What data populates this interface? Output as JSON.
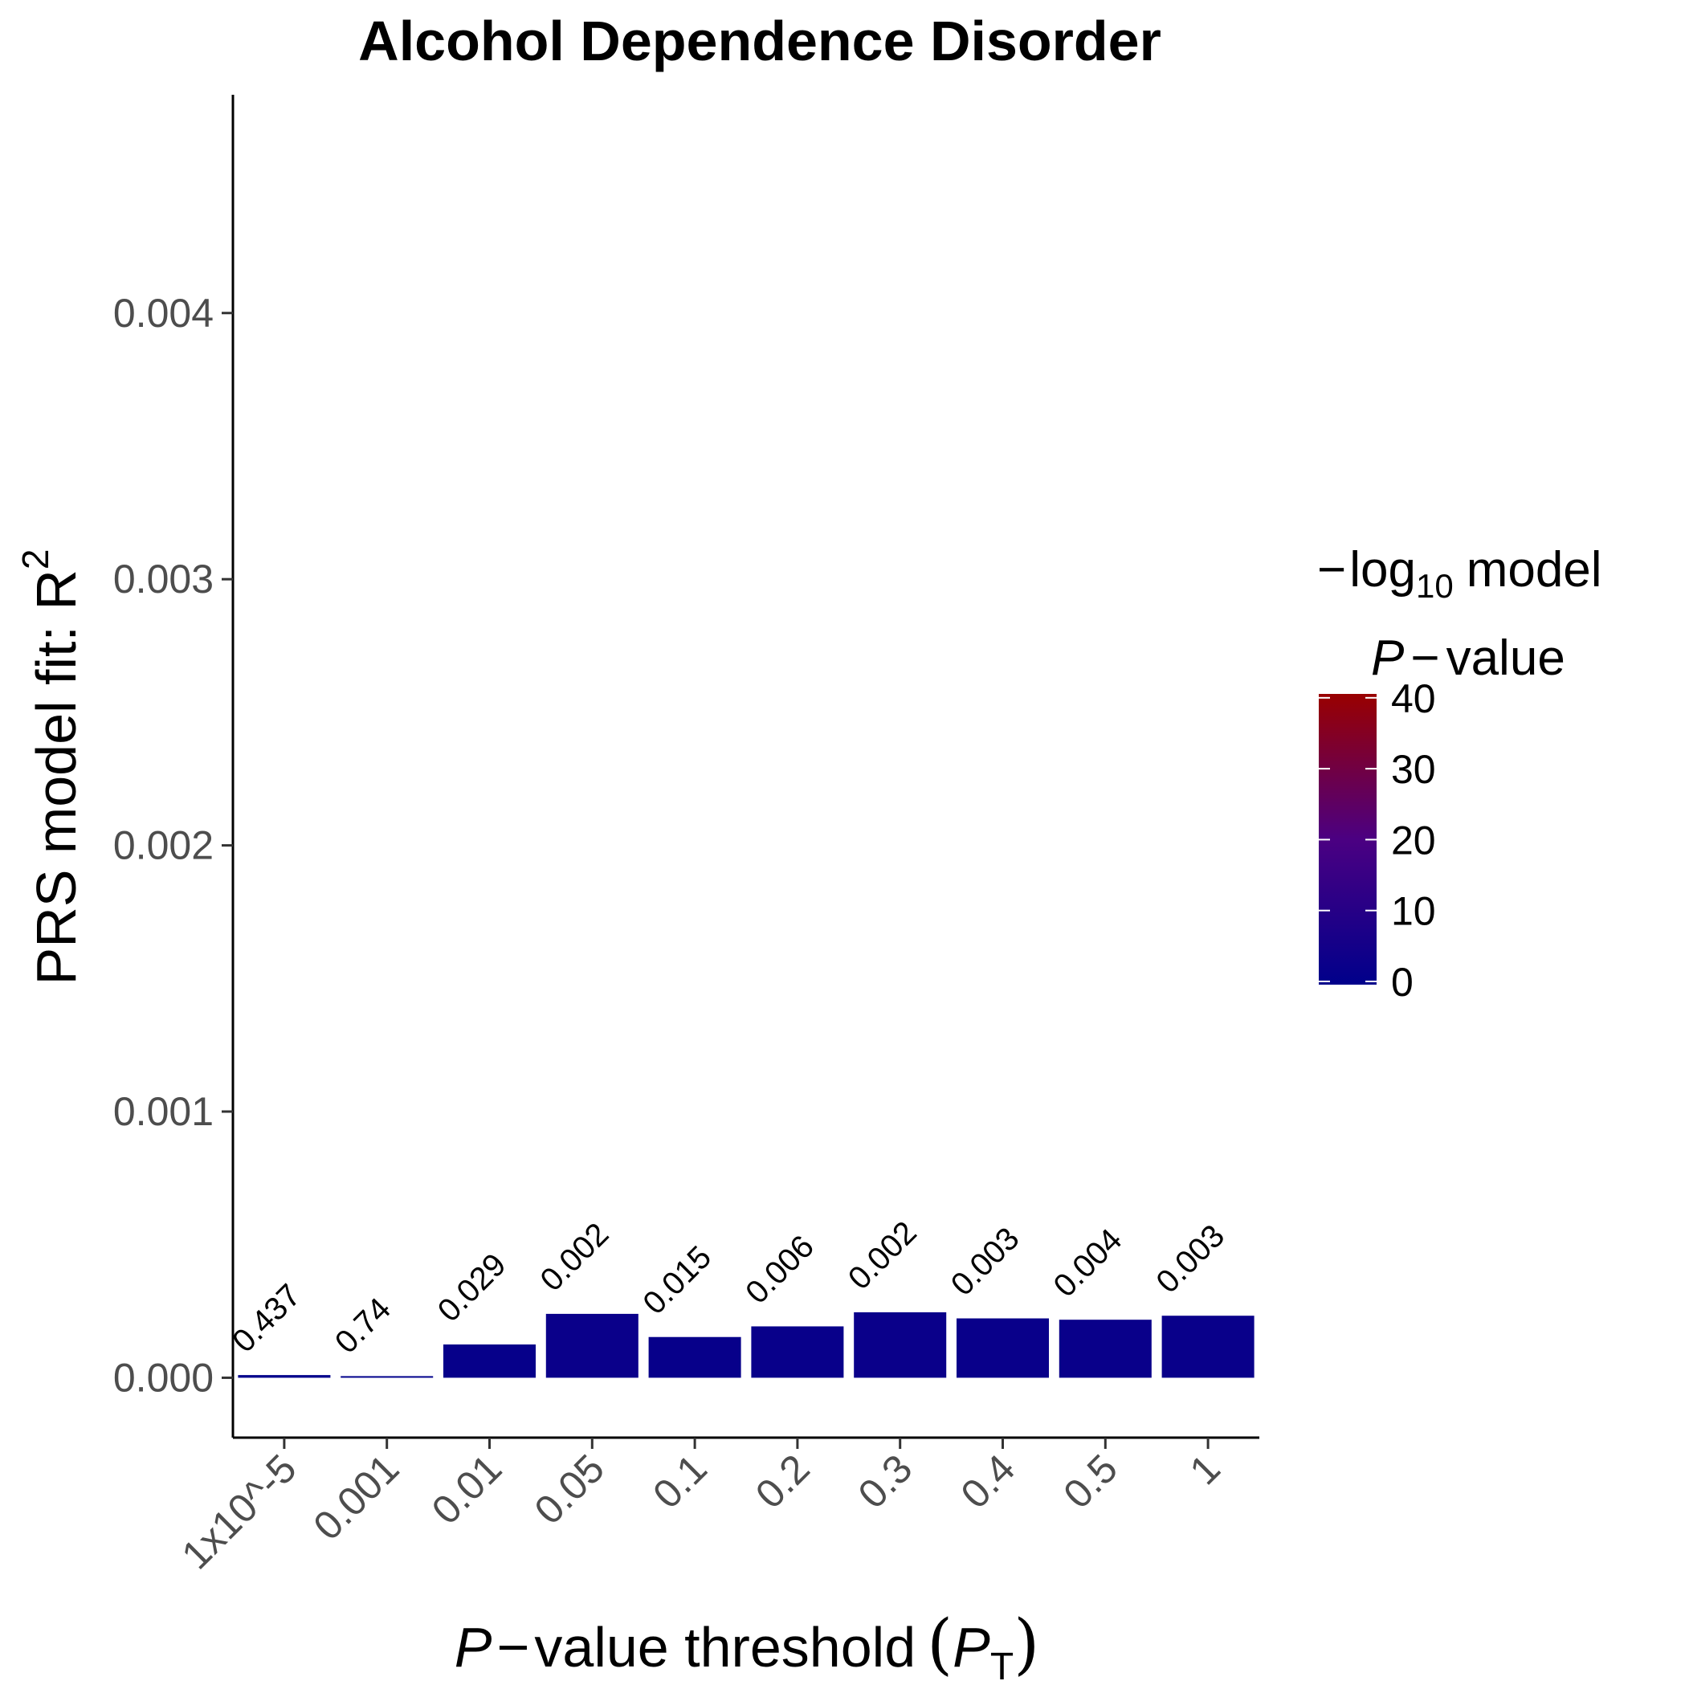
{
  "chart_data": {
    "type": "bar",
    "title": "Alcohol Dependence Disorder",
    "categories": [
      "1x10^-5",
      "0.001",
      "0.01",
      "0.05",
      "0.1",
      "0.2",
      "0.3",
      "0.4",
      "0.5",
      "1"
    ],
    "values": [
      1e-05,
      4e-06,
      0.000125,
      0.00024,
      0.000153,
      0.000193,
      0.000246,
      0.000223,
      0.000218,
      0.000233
    ],
    "neglog10p": [
      0.36,
      0.13,
      1.54,
      2.7,
      1.82,
      2.22,
      2.7,
      2.52,
      2.4,
      2.52
    ],
    "bar_labels": [
      "0.437",
      "0.74",
      "0.029",
      "0.002",
      "0.015",
      "0.006",
      "0.002",
      "0.003",
      "0.004",
      "0.003"
    ],
    "ylabel": {
      "main": "PRS model fit:  R",
      "superscript": "2"
    },
    "xlabel": {
      "italic_p": "P",
      "minus": "−",
      "text": "value threshold",
      "open_paren": "(",
      "italic_pt": "P",
      "subscript": "T",
      "close_paren": ")"
    },
    "y_ticks": [
      "0.000",
      "0.001",
      "0.002",
      "0.003",
      "0.004"
    ],
    "y_tick_values": [
      0,
      0.001,
      0.002,
      0.003,
      0.004
    ],
    "ylim": [
      -0.000225,
      0.00482
    ],
    "legend": {
      "line1_minus": "−",
      "line1_log": "log",
      "line1_sub": "10",
      "line1_rest": "model",
      "line2_p": "P",
      "line2_minus": "−",
      "line2_rest": "value",
      "ticks": [
        "0",
        "10",
        "20",
        "30",
        "40"
      ],
      "tick_values": [
        0,
        10,
        20,
        30,
        40
      ],
      "range": [
        0,
        41
      ],
      "color_low": "#00008B",
      "color_mid": "#4B0082",
      "color_high": "#990000",
      "position": "right"
    },
    "grid": false
  }
}
